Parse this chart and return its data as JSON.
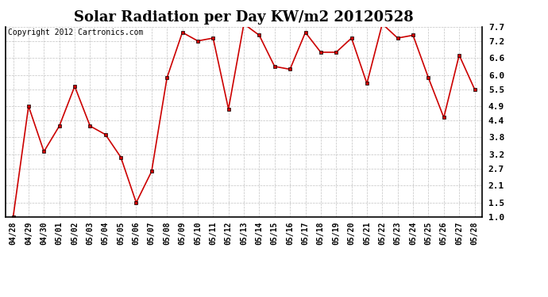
{
  "title": "Solar Radiation per Day KW/m2 20120528",
  "copyright": "Copyright 2012 Cartronics.com",
  "x_labels": [
    "04/28",
    "04/29",
    "04/30",
    "05/01",
    "05/02",
    "05/03",
    "05/04",
    "05/05",
    "05/06",
    "05/07",
    "05/08",
    "05/09",
    "05/10",
    "05/11",
    "05/12",
    "05/13",
    "05/14",
    "05/15",
    "05/16",
    "05/17",
    "05/18",
    "05/19",
    "05/20",
    "05/21",
    "05/22",
    "05/23",
    "05/24",
    "05/25",
    "05/26",
    "05/27",
    "05/28"
  ],
  "y_values": [
    1.0,
    4.9,
    3.3,
    4.2,
    5.6,
    4.2,
    3.9,
    3.1,
    1.5,
    2.6,
    5.9,
    7.5,
    7.2,
    7.3,
    4.8,
    7.8,
    7.4,
    6.3,
    6.2,
    7.5,
    6.8,
    6.8,
    7.3,
    5.7,
    7.8,
    7.3,
    7.4,
    5.9,
    4.5,
    6.7,
    5.5
  ],
  "ylim": [
    1.0,
    7.7
  ],
  "yticks": [
    7.7,
    7.2,
    6.6,
    6.0,
    5.5,
    4.9,
    4.4,
    3.8,
    3.2,
    2.7,
    2.1,
    1.5,
    1.0
  ],
  "line_color": "#cc0000",
  "marker": "s",
  "marker_color": "#cc0000",
  "marker_size": 3,
  "background_color": "#ffffff",
  "grid_color": "#bbbbbb",
  "title_fontsize": 13,
  "label_fontsize": 8,
  "copyright_fontsize": 7
}
